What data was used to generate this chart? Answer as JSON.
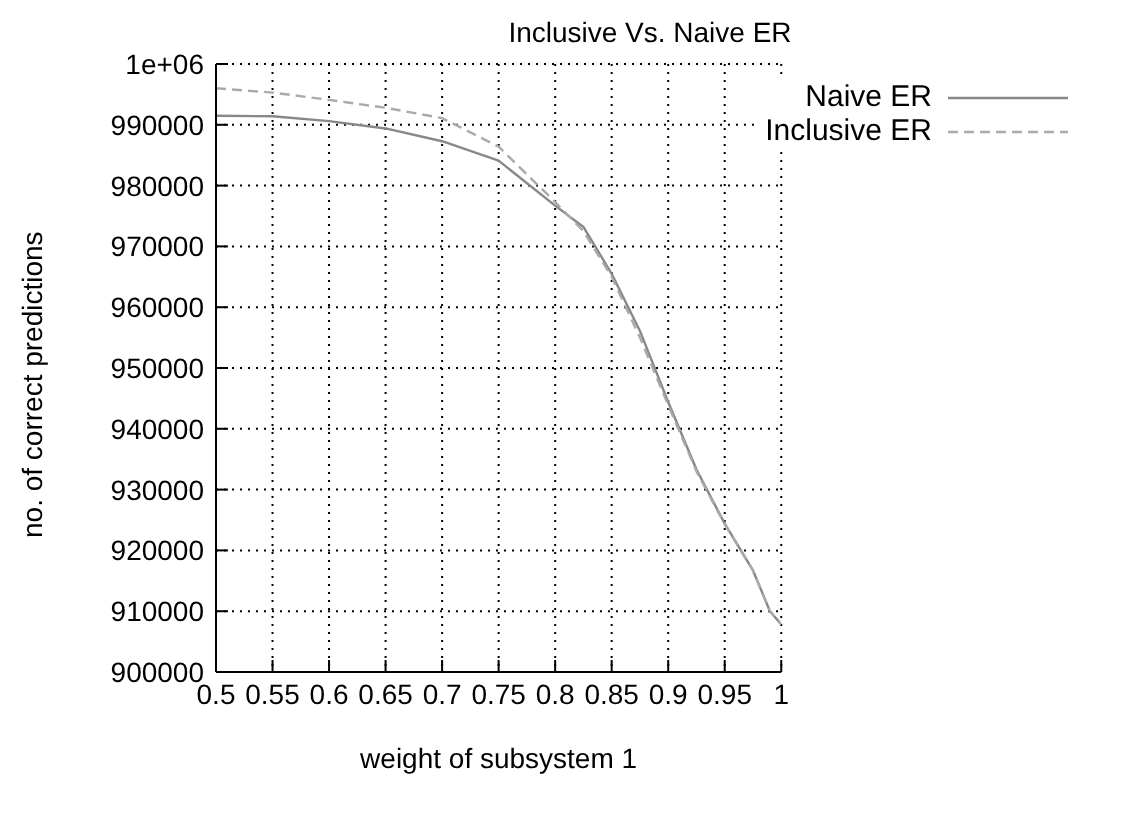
{
  "chart_data": {
    "type": "line",
    "title": "Inclusive Vs. Naive ER",
    "xlabel": "weight of subsystem 1",
    "ylabel": "no. of correct predictions",
    "x": [
      0.5,
      0.55,
      0.6,
      0.65,
      0.7,
      0.75,
      0.8,
      0.825,
      0.85,
      0.875,
      0.9,
      0.925,
      0.95,
      0.975,
      0.99,
      1.0
    ],
    "series": [
      {
        "name": "Naive ER",
        "color": "#888888",
        "line_style": "solid",
        "values": [
          991500,
          991400,
          990600,
          989400,
          987300,
          984100,
          976700,
          973200,
          965500,
          956100,
          944400,
          933300,
          924400,
          916700,
          910000,
          907800
        ]
      },
      {
        "name": "Inclusive ER",
        "color": "#aaaaaa",
        "line_style": "dashed",
        "values": [
          996000,
          995300,
          994100,
          992800,
          991100,
          986400,
          977300,
          972500,
          965000,
          955000,
          943900,
          933000,
          924300,
          916700,
          910000,
          907800
        ]
      }
    ],
    "xlim": [
      0.5,
      1
    ],
    "xticks": [
      0.5,
      0.55,
      0.6,
      0.65,
      0.7,
      0.75,
      0.8,
      0.85,
      0.9,
      0.95,
      1
    ],
    "ylim": [
      900000,
      1000000
    ],
    "yticks": [
      900000,
      910000,
      920000,
      930000,
      940000,
      950000,
      960000,
      970000,
      980000,
      990000,
      {
        "value": 1000000,
        "label": "1e+06"
      }
    ],
    "grid": true,
    "legend": "top right",
    "marker": "none"
  }
}
